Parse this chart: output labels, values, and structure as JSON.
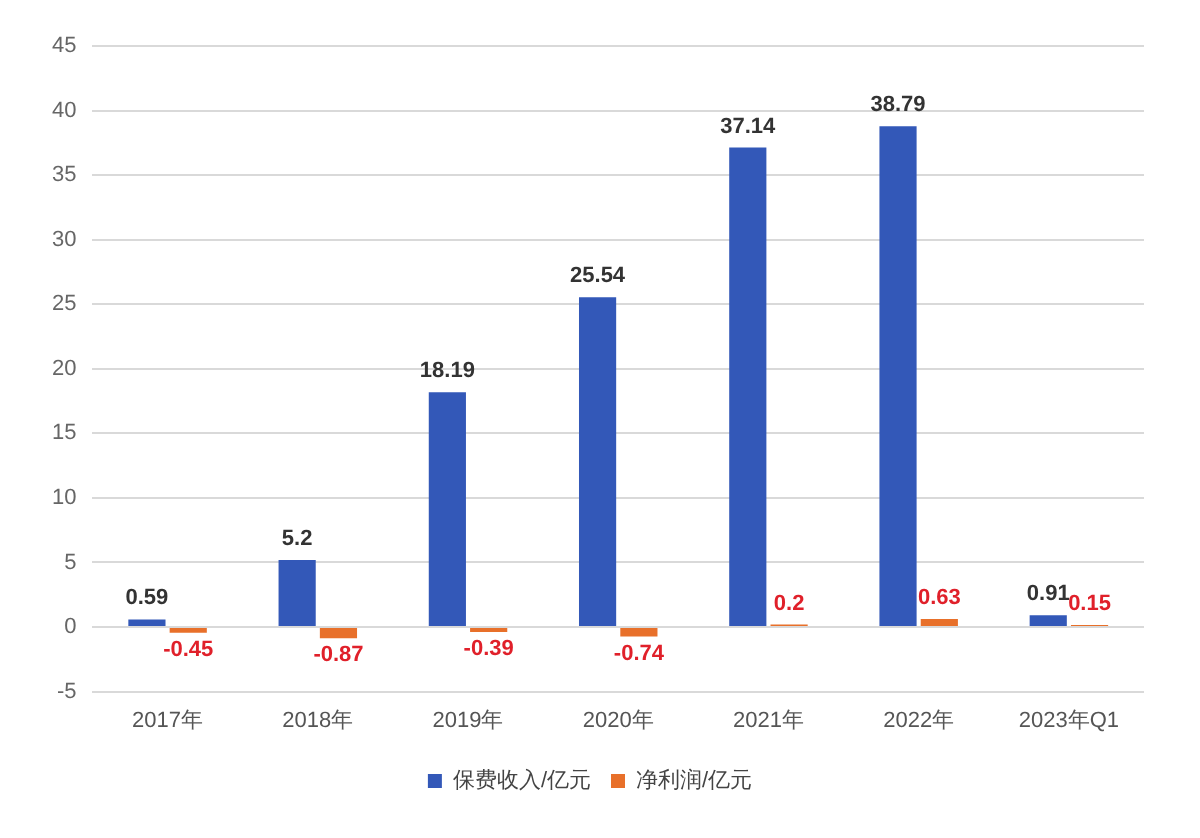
{
  "chart_data": {
    "type": "bar",
    "categories": [
      "2017年",
      "2018年",
      "2019年",
      "2020年",
      "2021年",
      "2022年",
      "2023年Q1"
    ],
    "series": [
      {
        "name": "保费收入/亿元",
        "color": "#3358b8",
        "values": [
          0.59,
          5.2,
          18.19,
          25.54,
          37.14,
          38.79,
          0.91
        ]
      },
      {
        "name": "净利润/亿元",
        "color": "#e8702a",
        "values": [
          -0.45,
          -0.87,
          -0.39,
          -0.74,
          0.2,
          0.63,
          0.15
        ]
      }
    ],
    "ylim": [
      -5,
      45
    ],
    "yticks": [
      -5,
      0,
      5,
      10,
      15,
      20,
      25,
      30,
      35,
      40,
      45
    ],
    "grid": "y",
    "legend": "bottom",
    "data_labels": true
  }
}
